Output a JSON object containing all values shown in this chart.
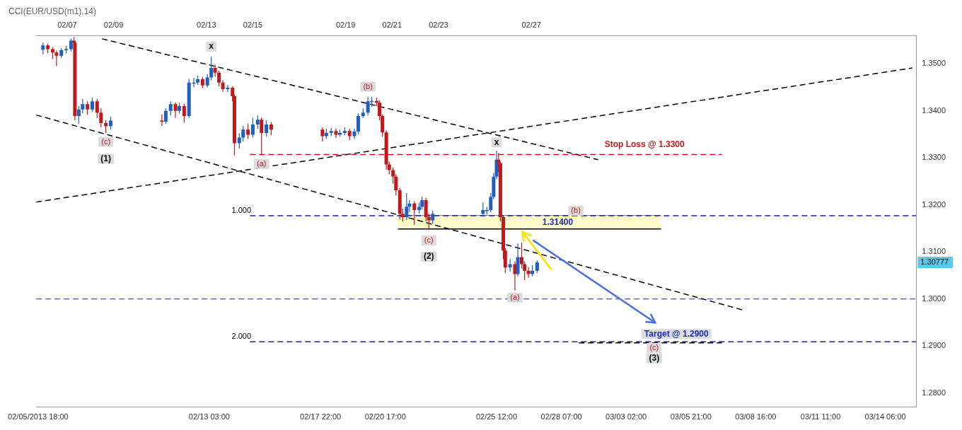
{
  "chart_data": {
    "type": "candlestick",
    "title": "CCI(EUR/USD(m1),14)",
    "x": [
      "2013-02-05T23:00",
      "2013-02-06T04:00",
      "2013-02-06T09:00",
      "2013-02-06T13:00",
      "2013-02-06T18:00",
      "2013-02-06T23:00",
      "2013-02-07T04:00",
      "2013-02-07T07:00",
      "2013-02-07T08:00",
      "2013-02-07T12:00",
      "2013-02-07T16:00",
      "2013-02-07T21:00",
      "2013-02-08T02:00",
      "2013-02-08T07:00",
      "2013-02-08T11:00",
      "2013-02-08T16:00",
      "2013-02-08T21:00",
      "2013-02-11T02:00",
      "2013-02-11T06:00",
      "2013-02-11T11:00",
      "2013-02-11T16:00",
      "2013-02-11T20:00",
      "2013-02-12T01:00",
      "2013-02-12T06:00",
      "2013-02-12T11:00",
      "2013-02-12T15:00",
      "2013-02-12T20:00",
      "2013-02-13T01:00",
      "2013-02-13T05:00",
      "2013-02-13T09:00",
      "2013-02-13T13:00",
      "2013-02-13T17:00",
      "2013-02-13T22:00",
      "2013-02-14T03:00",
      "2013-02-14T05:00",
      "2013-02-14T10:00",
      "2013-02-14T14:00",
      "2013-02-14T19:00",
      "2013-02-15T00:00",
      "2013-02-15T05:00",
      "2013-02-15T09:00",
      "2013-02-15T14:00",
      "2013-02-15T19:00",
      "2013-02-18T00:00",
      "2013-02-18T04:00",
      "2013-02-18T09:00",
      "2013-02-18T14:00",
      "2013-02-18T18:00",
      "2013-02-18T23:00",
      "2013-02-19T04:00",
      "2013-02-19T09:00",
      "2013-02-19T13:00",
      "2013-02-19T18:00",
      "2013-02-19T23:00",
      "2013-02-20T03:00",
      "2013-02-20T08:00",
      "2013-02-20T11:00",
      "2013-02-20T14:00",
      "2013-02-20T18:00",
      "2013-02-20T21:00",
      "2013-02-21T01:00",
      "2013-02-21T04:00",
      "2013-02-21T08:00",
      "2013-02-21T11:00",
      "2013-02-21T15:00",
      "2013-02-21T18:00",
      "2013-02-21T23:00",
      "2013-02-22T04:00",
      "2013-02-22T07:00",
      "2013-02-22T11:00",
      "2013-02-22T14:00",
      "2013-02-22T18:00",
      "2013-02-24T22:00",
      "2013-02-25T02:00",
      "2013-02-25T06:00",
      "2013-02-25T09:00",
      "2013-02-25T12:00",
      "2013-02-25T14:00",
      "2013-02-25T16:00",
      "2013-02-25T19:00",
      "2013-02-25T21:00",
      "2013-02-26T02:00",
      "2013-02-26T07:00",
      "2013-02-26T10:00",
      "2013-02-26T14:00",
      "2013-02-26T17:00",
      "2013-02-26T21:00",
      "2013-02-27T01:00",
      "2013-02-27T06:00"
    ],
    "ohlc": [
      [
        1.353,
        1.3545,
        1.352,
        1.3539
      ],
      [
        1.3539,
        1.3543,
        1.3522,
        1.3531
      ],
      [
        1.3531,
        1.3535,
        1.351,
        1.3524
      ],
      [
        1.3524,
        1.3528,
        1.3495,
        1.3517
      ],
      [
        1.3517,
        1.3533,
        1.3512,
        1.3529
      ],
      [
        1.3529,
        1.3538,
        1.3522,
        1.3531
      ],
      [
        1.3531,
        1.3553,
        1.3526,
        1.3549
      ],
      [
        1.3549,
        1.3557,
        1.3538,
        1.3545
      ],
      [
        1.3545,
        1.3548,
        1.338,
        1.3389
      ],
      [
        1.3389,
        1.341,
        1.3372,
        1.3403
      ],
      [
        1.3403,
        1.3425,
        1.3395,
        1.3414
      ],
      [
        1.3414,
        1.342,
        1.3392,
        1.3403
      ],
      [
        1.3403,
        1.3428,
        1.3398,
        1.342
      ],
      [
        1.342,
        1.3425,
        1.3385,
        1.3396
      ],
      [
        1.3396,
        1.3405,
        1.3365,
        1.3374
      ],
      [
        1.3374,
        1.338,
        1.3352,
        1.3367
      ],
      [
        1.3367,
        1.3388,
        1.336,
        1.3379
      ],
      [
        1.3379,
        1.3392,
        1.3368,
        1.3377
      ],
      [
        1.3377,
        1.3405,
        1.3372,
        1.34
      ],
      [
        1.34,
        1.342,
        1.339,
        1.3414
      ],
      [
        1.3414,
        1.3418,
        1.3385,
        1.34
      ],
      [
        1.34,
        1.3416,
        1.3394,
        1.341
      ],
      [
        1.341,
        1.3415,
        1.3375,
        1.3389
      ],
      [
        1.3389,
        1.3468,
        1.3385,
        1.346
      ],
      [
        1.346,
        1.347,
        1.345,
        1.346
      ],
      [
        1.346,
        1.3475,
        1.3455,
        1.3467
      ],
      [
        1.3467,
        1.3472,
        1.3448,
        1.3454
      ],
      [
        1.3454,
        1.3478,
        1.345,
        1.3471
      ],
      [
        1.3471,
        1.3515,
        1.3465,
        1.3491
      ],
      [
        1.3491,
        1.3498,
        1.3472,
        1.3481
      ],
      [
        1.3481,
        1.3485,
        1.3452,
        1.346
      ],
      [
        1.346,
        1.3465,
        1.344,
        1.3446
      ],
      [
        1.3446,
        1.3455,
        1.344,
        1.3449
      ],
      [
        1.3449,
        1.3452,
        1.342,
        1.3431
      ],
      [
        1.3431,
        1.3434,
        1.3305,
        1.3331
      ],
      [
        1.3331,
        1.3352,
        1.332,
        1.3343
      ],
      [
        1.3343,
        1.3368,
        1.3335,
        1.336
      ],
      [
        1.336,
        1.3372,
        1.334,
        1.3349
      ],
      [
        1.3349,
        1.3385,
        1.3343,
        1.3371
      ],
      [
        1.3371,
        1.339,
        1.3362,
        1.3381
      ],
      [
        1.3381,
        1.3386,
        1.3305,
        1.3353
      ],
      [
        1.3353,
        1.338,
        1.3345,
        1.3371
      ],
      [
        1.3371,
        1.3376,
        1.3348,
        1.336
      ],
      [
        1.336,
        1.3365,
        1.3335,
        1.3346
      ],
      [
        1.3346,
        1.3362,
        1.334,
        1.3353
      ],
      [
        1.3353,
        1.3364,
        1.3346,
        1.3357
      ],
      [
        1.3357,
        1.3362,
        1.3342,
        1.3349
      ],
      [
        1.3349,
        1.336,
        1.3345,
        1.3353
      ],
      [
        1.3353,
        1.3365,
        1.3348,
        1.3357
      ],
      [
        1.3357,
        1.3362,
        1.3338,
        1.3346
      ],
      [
        1.3346,
        1.3362,
        1.334,
        1.3356
      ],
      [
        1.3356,
        1.3395,
        1.335,
        1.3389
      ],
      [
        1.3389,
        1.3405,
        1.3385,
        1.3396
      ],
      [
        1.3396,
        1.343,
        1.339,
        1.342
      ],
      [
        1.342,
        1.343,
        1.3408,
        1.3421
      ],
      [
        1.3421,
        1.3428,
        1.341,
        1.3417
      ],
      [
        1.3417,
        1.3422,
        1.338,
        1.3389
      ],
      [
        1.3389,
        1.3392,
        1.3345,
        1.3354
      ],
      [
        1.3354,
        1.3358,
        1.3275,
        1.3286
      ],
      [
        1.3286,
        1.3292,
        1.3265,
        1.3274
      ],
      [
        1.3274,
        1.328,
        1.3245,
        1.326
      ],
      [
        1.326,
        1.3265,
        1.322,
        1.3231
      ],
      [
        1.3231,
        1.3236,
        1.317,
        1.3181
      ],
      [
        1.3181,
        1.3192,
        1.3165,
        1.3174
      ],
      [
        1.3174,
        1.3225,
        1.3168,
        1.3196
      ],
      [
        1.3196,
        1.321,
        1.3185,
        1.3203
      ],
      [
        1.3203,
        1.3208,
        1.3158,
        1.3189
      ],
      [
        1.3189,
        1.3205,
        1.3182,
        1.3196
      ],
      [
        1.3196,
        1.3218,
        1.319,
        1.321
      ],
      [
        1.321,
        1.3215,
        1.3165,
        1.3174
      ],
      [
        1.3174,
        1.3182,
        1.3147,
        1.3167
      ],
      [
        1.3167,
        1.3188,
        1.316,
        1.3181
      ],
      [
        1.3181,
        1.3205,
        1.3175,
        1.3189
      ],
      [
        1.3189,
        1.3196,
        1.318,
        1.3189
      ],
      [
        1.3189,
        1.3225,
        1.3185,
        1.3217
      ],
      [
        1.3217,
        1.3268,
        1.3212,
        1.326
      ],
      [
        1.326,
        1.3315,
        1.3255,
        1.3296
      ],
      [
        1.3296,
        1.331,
        1.327,
        1.3289
      ],
      [
        1.3289,
        1.3292,
        1.3165,
        1.3174
      ],
      [
        1.3174,
        1.3178,
        1.3085,
        1.3103
      ],
      [
        1.3103,
        1.3108,
        1.3055,
        1.3067
      ],
      [
        1.3067,
        1.3085,
        1.3058,
        1.3074
      ],
      [
        1.3074,
        1.308,
        1.3018,
        1.3053
      ],
      [
        1.3053,
        1.3118,
        1.3048,
        1.3089
      ],
      [
        1.3089,
        1.312,
        1.3065,
        1.3074
      ],
      [
        1.3074,
        1.308,
        1.304,
        1.306
      ],
      [
        1.306,
        1.3068,
        1.3045,
        1.3053
      ],
      [
        1.3053,
        1.3072,
        1.3048,
        1.306
      ],
      [
        1.306,
        1.3082,
        1.3055,
        1.30777
      ]
    ],
    "colors": [
      "#1f5fbf",
      "#c0181b",
      "#c0181b",
      "#c0181b",
      "#1f5fbf",
      "#1f5fbf",
      "#1f5fbf",
      "#c0181b",
      "#c0181b",
      "#1f5fbf",
      "#1f5fbf",
      "#c0181b",
      "#1f5fbf",
      "#c0181b",
      "#c0181b",
      "#c0181b",
      "#1f5fbf",
      "#c0181b",
      "#1f5fbf",
      "#1f5fbf",
      "#c0181b",
      "#1f5fbf",
      "#c0181b",
      "#1f5fbf",
      "#1f5fbf",
      "#1f5fbf",
      "#c0181b",
      "#1f5fbf",
      "#1f5fbf",
      "#c0181b",
      "#c0181b",
      "#c0181b",
      "#1f5fbf",
      "#c0181b",
      "#c0181b",
      "#1f5fbf",
      "#1f5fbf",
      "#c0181b",
      "#1f5fbf",
      "#1f5fbf",
      "#c0181b",
      "#1f5fbf",
      "#c0181b",
      "#c0181b",
      "#1f5fbf",
      "#1f5fbf",
      "#c0181b",
      "#1f5fbf",
      "#1f5fbf",
      "#c0181b",
      "#1f5fbf",
      "#1f5fbf",
      "#1f5fbf",
      "#1f5fbf",
      "#1f5fbf",
      "#c0181b",
      "#c0181b",
      "#c0181b",
      "#c0181b",
      "#c0181b",
      "#c0181b",
      "#c0181b",
      "#c0181b",
      "#c0181b",
      "#1f5fbf",
      "#1f5fbf",
      "#c0181b",
      "#1f5fbf",
      "#1f5fbf",
      "#c0181b",
      "#c0181b",
      "#1f5fbf",
      "#1f5fbf",
      "#1f5fbf",
      "#1f5fbf",
      "#1f5fbf",
      "#1f5fbf",
      "#c0181b",
      "#c0181b",
      "#c0181b",
      "#c0181b",
      "#1f5fbf",
      "#c0181b",
      "#1f5fbf",
      "#c0181b",
      "#c0181b",
      "#c0181b",
      "#1f5fbf",
      "#1f5fbf"
    ],
    "series": [
      {
        "type": "line",
        "x": [
          "2013-02-08T12:00",
          "2013-03-01T21:00"
        ],
        "values": [
          1.3553,
          1.3296
        ],
        "color": "#000000",
        "line_style": "dashed"
      },
      {
        "type": "line",
        "x": [
          "2013-02-05T16:00",
          "2013-03-08T02:00"
        ],
        "values": [
          1.3391,
          1.2977
        ],
        "color": "#000000",
        "line_style": "dashed"
      },
      {
        "type": "line",
        "x": [
          "2013-02-05T16:00",
          "2013-03-15T10:00"
        ],
        "values": [
          1.3206,
          1.3491
        ],
        "color": "#000000",
        "line_style": "dashed"
      },
      {
        "type": "line",
        "x": [
          "2013-02-14T21:00",
          "2013-03-07T05:00"
        ],
        "values": [
          1.3307,
          1.3307
        ],
        "color": "#d01010",
        "line_style": "dashed"
      },
      {
        "type": "line",
        "x": [
          "2013-02-14T21:00",
          "2013-03-15T14:00"
        ],
        "values": [
          1.3177,
          1.3177
        ],
        "color": "#2020a0",
        "line_style": "dashed"
      },
      {
        "type": "line",
        "x": [
          "2013-02-14T21:00",
          "2013-03-15T14:00"
        ],
        "values": [
          1.2909,
          1.2909
        ],
        "color": "#2020a0",
        "line_style": "dashed"
      },
      {
        "type": "line",
        "x": [
          "2013-03-01T01:00",
          "2013-03-07T05:00"
        ],
        "values": [
          1.2907,
          1.2907
        ],
        "color": "#000000",
        "line_style": "dashed"
      },
      {
        "type": "line",
        "x": [
          "2013-02-21T06:00",
          "2013-03-04T14:00"
        ],
        "values": [
          1.3149,
          1.3149
        ],
        "color": "#000000"
      },
      {
        "type": "line",
        "x": [
          "2013-02-21T06:00",
          "2013-03-04T14:00"
        ],
        "values": [
          1.3177,
          1.3177
        ],
        "lower": [
          1.3149,
          1.3149
        ],
        "upper": [
          1.3177,
          1.3177
        ],
        "color": "#000000"
      }
    ],
    "ref_lines": [
      {
        "axis": "y",
        "value": 1.3,
        "color": "#2020a0",
        "line_style": "dashed"
      }
    ],
    "annotations": [
      {
        "text": "x",
        "x": "2013-02-13T05:00",
        "y": 1.3515
      },
      {
        "text": "(c)",
        "x": "2013-02-08T16:00",
        "y": 1.3352
      },
      "(1)",
      {
        "text": "(b)",
        "x": "2013-02-19T23:00",
        "y": 1.343
      },
      {
        "text": "(a)",
        "x": "2013-02-15T09:00",
        "y": 1.3305
      },
      {
        "text": "x",
        "x": "2013-02-25T12:00",
        "y": 1.3315
      },
      {
        "text": "Stop Loss @ 1.3300",
        "x": "2013-03-03T21:00",
        "y": 1.3307
      },
      {
        "text": "1.000",
        "x": "2013-02-14T21:00",
        "y": 1.3177
      },
      {
        "text": "(b)",
        "x": "2013-02-28T22:00",
        "y": 1.3177
      },
      "1.31400",
      {
        "text": "(c)",
        "x": "2013-02-22T14:00",
        "y": 1.3147
      },
      "(2)",
      {
        "text": "(a)",
        "x": "2013-02-26T07:00",
        "y": 1.3018
      },
      {
        "text": "Target @ 1.2900",
        "x": "2013-03-05T06:00",
        "y": 1.2909
      },
      {
        "text": "2.000",
        "x": "2013-02-14T21:00",
        "y": 1.2909
      },
      {
        "text": "(c)",
        "x": "2013-03-04T07:00",
        "y": 1.2896
      },
      {
        "text": "(3)",
        "x": "2013-03-04T07:00",
        "y": 1.2874
      },
      "1.30777"
    ],
    "xlim": [
      "2013-02-05T16:00",
      "2013-03-15T14:00"
    ],
    "xticks": [
      {
        "value": "2013-02-05T18:00",
        "label": "02/05/2013 18:00"
      },
      {
        "value": "2013-02-13T03:00",
        "label": "02/13 03:00"
      },
      {
        "value": "2013-02-17T22:00",
        "label": "02/17 22:00"
      },
      {
        "value": "2013-02-20T17:00",
        "label": "02/20 17:00"
      },
      {
        "value": "2013-02-25T12:00",
        "label": "02/25 12:00"
      },
      {
        "value": "2013-02-28T07:00",
        "label": "02/28 07:00"
      },
      {
        "value": "2013-03-03T02:00",
        "label": "03/03 02:00"
      },
      {
        "value": "2013-03-05T21:00",
        "label": "03/05 21:00"
      },
      {
        "value": "2013-03-08T16:00",
        "label": "03/08 16:00"
      },
      {
        "value": "2013-03-11T11:00",
        "label": "03/11 11:00"
      },
      {
        "value": "2013-03-14T06:00",
        "label": "03/14 06:00"
      }
    ],
    "x2lim": [
      "2013-02-05T16:00",
      "2013-03-15T14:00"
    ],
    "x2ticks": [
      {
        "value": "2013-02-07",
        "label": "02/07"
      },
      {
        "value": "2013-02-09",
        "label": "02/09"
      },
      {
        "value": "2013-02-13",
        "label": "02/13"
      },
      {
        "value": "2013-02-15",
        "label": "02/15"
      },
      {
        "value": "2013-02-19",
        "label": "02/19"
      },
      {
        "value": "2013-02-21",
        "label": "02/21"
      },
      {
        "value": "2013-02-23",
        "label": "02/23"
      },
      {
        "value": "2013-02-27",
        "label": "02/27"
      }
    ],
    "ylim": [
      1.277,
      1.356
    ],
    "yticks": [
      {
        "value": 1.28,
        "label": "1.2800"
      },
      {
        "value": 1.29,
        "label": "1.2900"
      },
      {
        "value": 1.3,
        "label": "1.3000"
      },
      {
        "value": 1.31,
        "label": "1.3100"
      },
      {
        "value": 1.32,
        "label": "1.3200"
      },
      {
        "value": 1.33,
        "label": "1.3300"
      },
      {
        "value": 1.34,
        "label": "1.3400"
      },
      {
        "value": 1.35,
        "label": "1.3500"
      }
    ]
  }
}
